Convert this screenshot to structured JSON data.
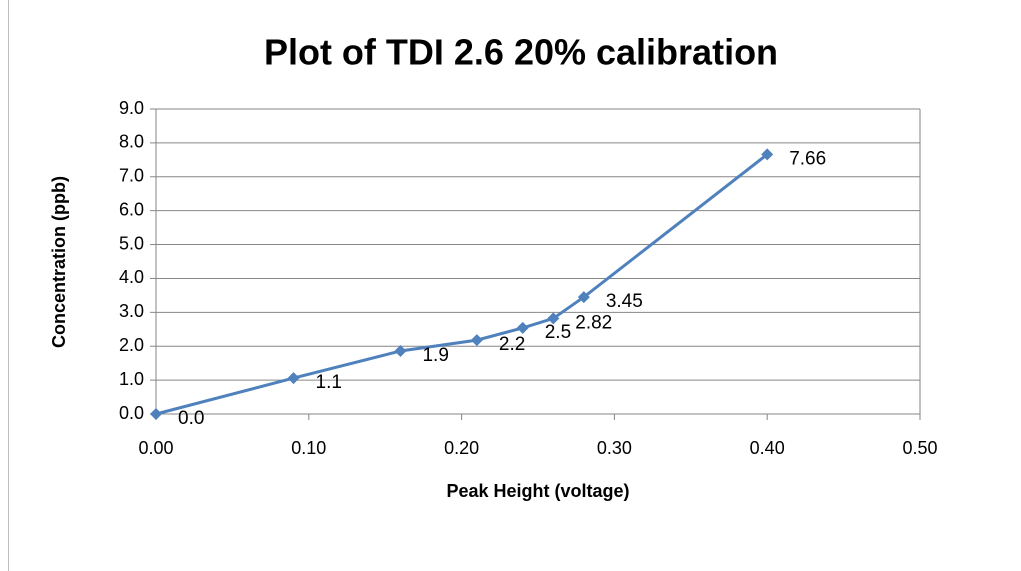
{
  "chart_data": {
    "type": "line",
    "title": "Plot of TDI 2.6 20% calibration",
    "x_label": "Peak Height (voltage)",
    "y_label": "Concentration (ppb)",
    "x": [
      0,
      0.09,
      0.16,
      0.21,
      0.24,
      0.26,
      0.28,
      0.4
    ],
    "series": [
      {
        "color": "#4f81bd",
        "values": [
          0,
          1.06,
          1.86,
          2.18,
          2.54,
          2.82,
          3.45,
          7.66
        ],
        "value_labels": [
          "0.0",
          "1.1",
          "1.9",
          "2.2",
          "2.5",
          "2.82",
          "3.45",
          "7.66"
        ]
      }
    ],
    "xlim": [
      0,
      0.5
    ],
    "xticks": [
      {
        "value": 0,
        "label": "0.00"
      },
      {
        "value": 0.1,
        "label": "0.10"
      },
      {
        "value": 0.2,
        "label": "0.20"
      },
      {
        "value": 0.3,
        "label": "0.30"
      },
      {
        "value": 0.4,
        "label": "0.40"
      },
      {
        "value": 0.5,
        "label": "0.50"
      }
    ],
    "ylim": [
      0,
      9
    ],
    "yticks": [
      {
        "value": 0,
        "label": "0.0"
      },
      {
        "value": 1,
        "label": "1.0"
      },
      {
        "value": 2,
        "label": "2.0"
      },
      {
        "value": 3,
        "label": "3.0"
      },
      {
        "value": 4,
        "label": "4.0"
      },
      {
        "value": 5,
        "label": "5.0"
      },
      {
        "value": 6,
        "label": "6.0"
      },
      {
        "value": 7,
        "label": "7.0"
      },
      {
        "value": 8,
        "label": "8.0"
      },
      {
        "value": 9,
        "label": "9.0"
      }
    ],
    "grid": true
  }
}
